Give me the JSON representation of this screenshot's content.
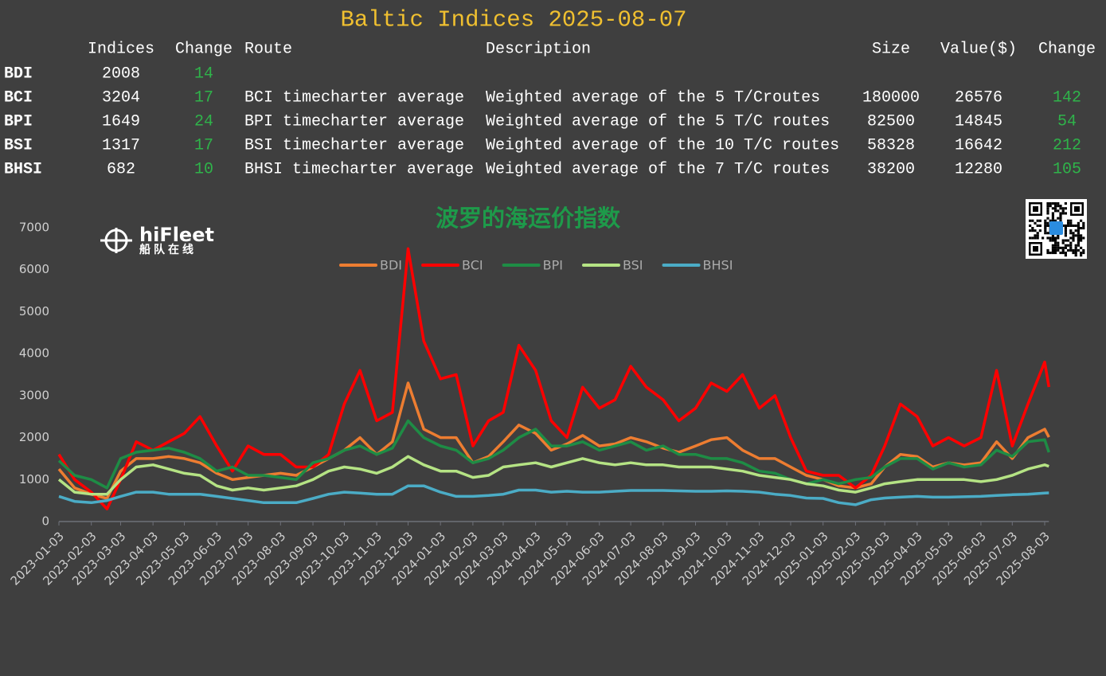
{
  "header": {
    "title": "Baltic Indices 2025-08-07"
  },
  "table": {
    "header": [
      "Indices",
      "Change",
      "Route",
      "Description",
      "Size",
      "Value($)",
      "Change"
    ],
    "rows": [
      [
        "BDI",
        "2008",
        "14"
      ],
      [
        "BCI",
        "3204",
        "17",
        "BCI timecharter average",
        "Weighted average of the 5 T/Croutes",
        "180000",
        "26576",
        "142"
      ],
      [
        "BPI",
        "1649",
        "24",
        "BPI timecharter average",
        "Weighted average of the 5 T/C routes",
        "82500",
        "14845",
        "54"
      ],
      [
        "BSI",
        "1317",
        "17",
        "BSI timecharter average",
        "Weighted average of the 10 T/C routes",
        "58328",
        "16642",
        "212"
      ],
      [
        "BHSI",
        "682",
        "10",
        "BHSI timecharter average",
        "Weighted average of the 7 T/C routes",
        "38200",
        "12280",
        "105"
      ]
    ]
  },
  "logo": {
    "name": "hiFleet",
    "subtitle": "船队在线"
  },
  "chart_data": {
    "type": "line",
    "title": "波罗的海运价指数",
    "x": [
      "2023-01-03",
      "2023-01-18",
      "2023-02-03",
      "2023-02-18",
      "2023-03-03",
      "2023-03-18",
      "2023-04-03",
      "2023-04-18",
      "2023-05-03",
      "2023-05-18",
      "2023-06-03",
      "2023-06-18",
      "2023-07-03",
      "2023-07-18",
      "2023-08-03",
      "2023-08-18",
      "2023-09-03",
      "2023-09-18",
      "2023-10-03",
      "2023-10-18",
      "2023-11-03",
      "2023-11-18",
      "2023-12-03",
      "2023-12-18",
      "2024-01-03",
      "2024-01-18",
      "2024-02-03",
      "2024-02-18",
      "2024-03-03",
      "2024-03-18",
      "2024-04-03",
      "2024-04-18",
      "2024-05-03",
      "2024-05-18",
      "2024-06-03",
      "2024-06-18",
      "2024-07-03",
      "2024-07-18",
      "2024-08-03",
      "2024-08-18",
      "2024-09-03",
      "2024-09-18",
      "2024-10-03",
      "2024-10-18",
      "2024-11-03",
      "2024-11-18",
      "2024-12-03",
      "2024-12-18",
      "2025-01-03",
      "2025-01-18",
      "2025-02-03",
      "2025-02-18",
      "2025-03-03",
      "2025-03-18",
      "2025-04-03",
      "2025-04-18",
      "2025-05-03",
      "2025-05-18",
      "2025-06-03",
      "2025-06-18",
      "2025-07-03",
      "2025-07-18",
      "2025-08-03",
      "2025-08-07"
    ],
    "series": [
      {
        "name": "BDI",
        "color": "#ed7d31",
        "values": [
          1250,
          800,
          650,
          550,
          1200,
          1500,
          1500,
          1550,
          1500,
          1400,
          1150,
          1000,
          1050,
          1100,
          1150,
          1100,
          1300,
          1500,
          1700,
          2000,
          1600,
          1900,
          3300,
          2200,
          2000,
          2000,
          1400,
          1550,
          1900,
          2300,
          2100,
          1700,
          1850,
          2050,
          1800,
          1850,
          2000,
          1900,
          1750,
          1650,
          1800,
          1950,
          2000,
          1700,
          1500,
          1500,
          1300,
          1100,
          1000,
          850,
          800,
          900,
          1300,
          1600,
          1550,
          1300,
          1400,
          1350,
          1400,
          1900,
          1500,
          2000,
          2200,
          2008
        ]
      },
      {
        "name": "BCI",
        "color": "#ff0000",
        "values": [
          1600,
          1000,
          700,
          300,
          1000,
          1900,
          1700,
          1900,
          2100,
          2500,
          1800,
          1200,
          1800,
          1600,
          1600,
          1300,
          1300,
          1600,
          2800,
          3600,
          2400,
          2600,
          6500,
          4300,
          3400,
          3500,
          1800,
          2400,
          2600,
          4200,
          3600,
          2400,
          2000,
          3200,
          2700,
          2900,
          3700,
          3200,
          2900,
          2400,
          2700,
          3300,
          3100,
          3500,
          2700,
          3000,
          2000,
          1200,
          1100,
          1100,
          800,
          1100,
          1800,
          2800,
          2500,
          1800,
          2000,
          1800,
          2000,
          3600,
          1800,
          2800,
          3800,
          3204
        ]
      },
      {
        "name": "BPI",
        "color": "#1e8c45",
        "values": [
          1450,
          1100,
          1000,
          800,
          1500,
          1650,
          1700,
          1750,
          1650,
          1500,
          1200,
          1300,
          1100,
          1100,
          1050,
          1000,
          1400,
          1500,
          1700,
          1800,
          1600,
          1750,
          2400,
          2000,
          1800,
          1700,
          1400,
          1500,
          1700,
          2000,
          2200,
          1800,
          1800,
          1900,
          1700,
          1800,
          1900,
          1700,
          1800,
          1600,
          1600,
          1500,
          1500,
          1400,
          1200,
          1150,
          1000,
          900,
          1000,
          900,
          1000,
          1050,
          1300,
          1500,
          1500,
          1250,
          1400,
          1300,
          1350,
          1700,
          1550,
          1900,
          1950,
          1649
        ]
      },
      {
        "name": "BSI",
        "color": "#b5e384",
        "values": [
          1000,
          700,
          650,
          650,
          1000,
          1300,
          1350,
          1250,
          1150,
          1100,
          850,
          750,
          800,
          750,
          800,
          850,
          1000,
          1200,
          1300,
          1250,
          1150,
          1300,
          1550,
          1350,
          1200,
          1200,
          1050,
          1100,
          1300,
          1350,
          1400,
          1300,
          1400,
          1500,
          1400,
          1350,
          1400,
          1350,
          1350,
          1300,
          1300,
          1300,
          1250,
          1200,
          1100,
          1050,
          1000,
          900,
          850,
          750,
          700,
          800,
          900,
          950,
          1000,
          1000,
          1000,
          1000,
          950,
          1000,
          1100,
          1250,
          1350,
          1317
        ]
      },
      {
        "name": "BHSI",
        "color": "#4bacc6",
        "values": [
          600,
          480,
          450,
          500,
          600,
          700,
          700,
          650,
          650,
          650,
          600,
          550,
          500,
          450,
          450,
          450,
          550,
          650,
          700,
          680,
          650,
          650,
          850,
          850,
          700,
          600,
          600,
          620,
          650,
          750,
          750,
          700,
          720,
          700,
          700,
          720,
          740,
          740,
          740,
          730,
          720,
          720,
          730,
          720,
          700,
          650,
          620,
          560,
          550,
          450,
          400,
          520,
          560,
          580,
          600,
          580,
          580,
          590,
          600,
          620,
          640,
          650,
          680,
          682
        ]
      }
    ],
    "xlim": [
      "2023-01-03",
      "2025-08-07"
    ],
    "xticks": [
      "2023-01-03",
      "2023-02-03",
      "2023-03-03",
      "2023-04-03",
      "2023-05-03",
      "2023-06-03",
      "2023-07-03",
      "2023-08-03",
      "2023-09-03",
      "2023-10-03",
      "2023-11-03",
      "2023-12-03",
      "2024-01-03",
      "2024-02-03",
      "2024-03-03",
      "2024-04-03",
      "2024-05-03",
      "2024-06-03",
      "2024-07-03",
      "2024-08-03",
      "2024-09-03",
      "2024-10-03",
      "2024-11-03",
      "2024-12-03",
      "2025-01-03",
      "2025-02-03",
      "2025-03-03",
      "2025-04-03",
      "2025-05-03",
      "2025-06-03",
      "2025-07-03",
      "2025-08-03"
    ],
    "ylim": [
      0,
      7000
    ],
    "yticks": [
      0,
      1000,
      2000,
      3000,
      4000,
      5000,
      6000,
      7000
    ],
    "grid": false,
    "legend": "top"
  }
}
